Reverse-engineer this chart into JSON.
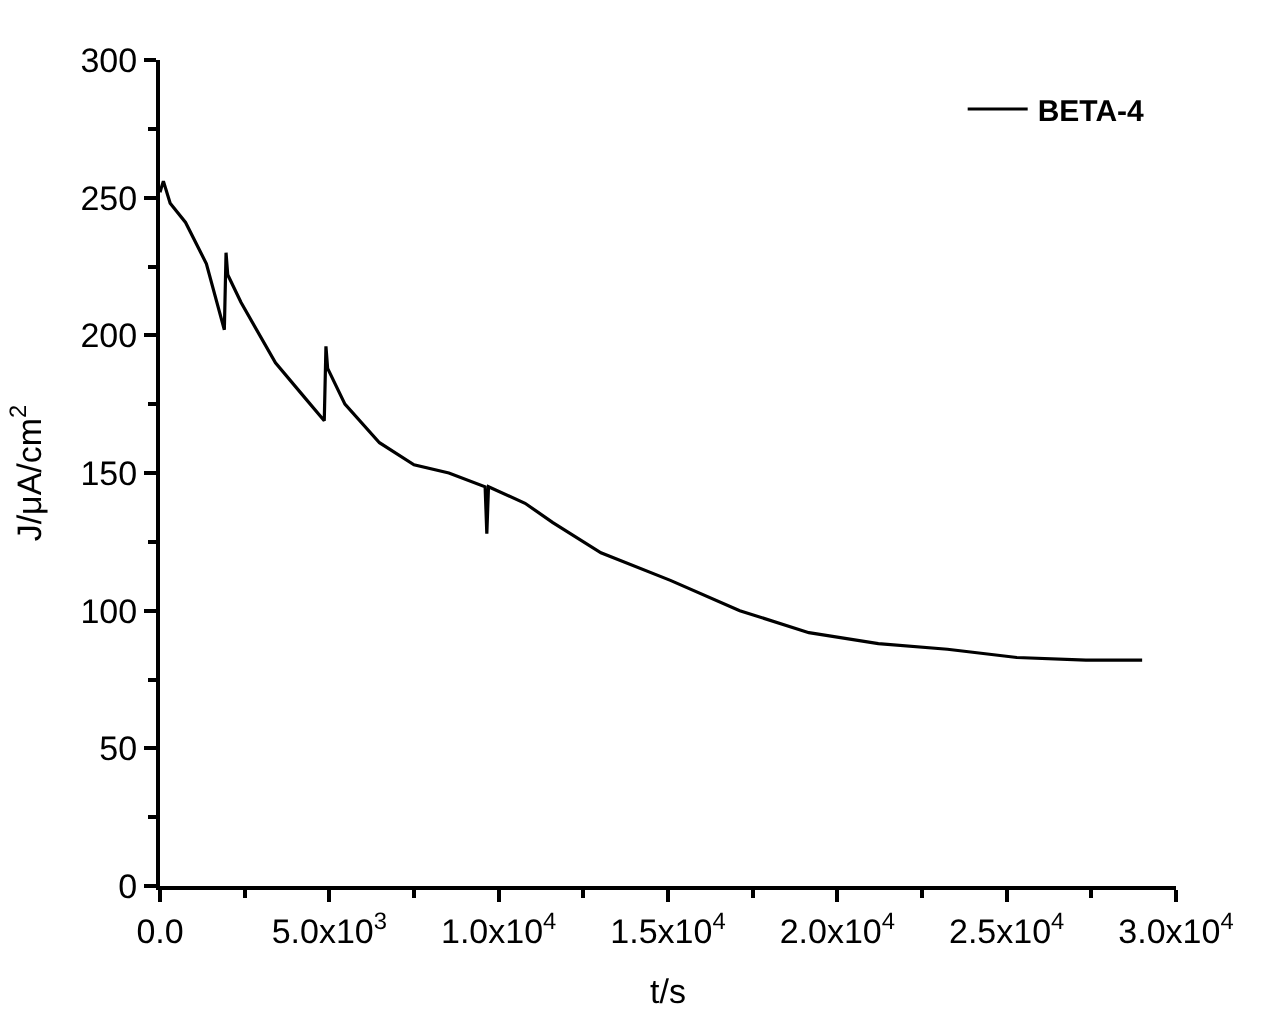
{
  "chart_data": {
    "type": "line",
    "xlabel": "t/s",
    "ylabel": "J/μA/cm$^{2}$",
    "xlim": [
      0,
      30000
    ],
    "ylim": [
      0,
      300
    ],
    "xticks": [
      {
        "value": 0,
        "label": "0.0"
      },
      {
        "value": 5000,
        "label": "5.0x10$^{3}$"
      },
      {
        "value": 10000,
        "label": "1.0x10$^{4}$"
      },
      {
        "value": 15000,
        "label": "1.5x10$^{4}$"
      },
      {
        "value": 20000,
        "label": "2.0x10$^{4}$"
      },
      {
        "value": 25000,
        "label": "2.5x10$^{4}$"
      },
      {
        "value": 30000,
        "label": "3.0x10$^{4}$"
      }
    ],
    "yticks": [
      0,
      50,
      100,
      150,
      200,
      250,
      300
    ],
    "grid": false,
    "legend": "top right",
    "marker": "none",
    "line_style": "solid",
    "series": [
      {
        "name": "BETA-4",
        "color": "#000000",
        "x": [
          0,
          100,
          300,
          755,
          1370,
          1900,
          1950,
          2000,
          2390,
          3410,
          4230,
          4850,
          4900,
          4950,
          5460,
          6480,
          7500,
          8530,
          9600,
          9650,
          9700,
          10780,
          11600,
          13020,
          15070,
          17120,
          19160,
          21210,
          23250,
          25300,
          27340,
          29000
        ],
        "values": [
          252,
          256,
          248,
          241,
          226,
          202,
          230,
          222,
          212,
          190,
          178,
          169,
          196,
          188,
          175,
          161,
          153,
          150,
          145,
          128,
          145,
          139,
          132,
          121,
          111,
          100,
          92,
          88,
          86,
          83,
          82,
          82
        ]
      }
    ]
  }
}
